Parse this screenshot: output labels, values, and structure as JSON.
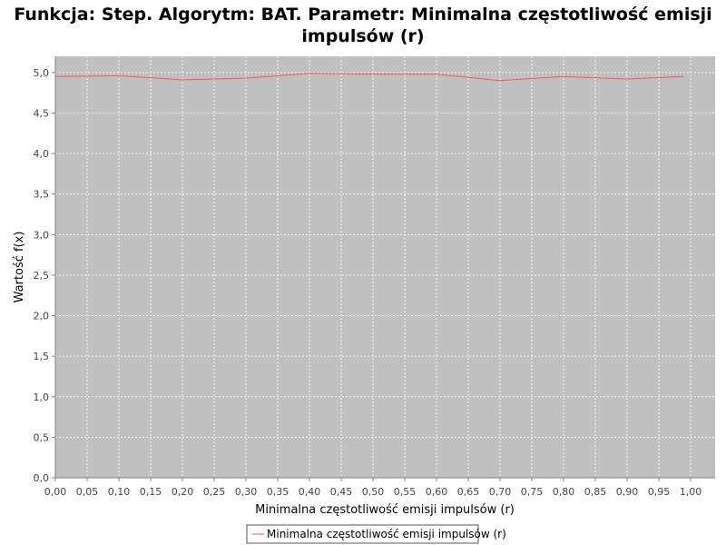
{
  "chart_data": {
    "type": "line",
    "title_line1": "Funkcja: Step. Algorytm: BAT. Parametr: Minimalna częstotliwość emisji",
    "title_line2": "impulsów (r)",
    "xlabel": "Minimalna częstotliwość emisji impulsów (r)",
    "ylabel": "Wartość f(x)",
    "xlim": [
      0.0,
      1.0
    ],
    "ylim": [
      0.0,
      5.2
    ],
    "x_ticks": [
      0.0,
      0.05,
      0.1,
      0.15,
      0.2,
      0.25,
      0.3,
      0.35,
      0.4,
      0.45,
      0.5,
      0.55,
      0.6,
      0.65,
      0.7,
      0.75,
      0.8,
      0.85,
      0.9,
      0.95,
      1.0
    ],
    "x_tick_labels": [
      "0,00",
      "0,05",
      "0,10",
      "0,15",
      "0,20",
      "0,25",
      "0,30",
      "0,35",
      "0,40",
      "0,45",
      "0,50",
      "0,55",
      "0,60",
      "0,65",
      "0,70",
      "0,75",
      "0,80",
      "0,85",
      "0,90",
      "0,95",
      "1,00"
    ],
    "y_ticks": [
      0.0,
      0.5,
      1.0,
      1.5,
      2.0,
      2.5,
      3.0,
      3.5,
      4.0,
      4.5,
      5.0
    ],
    "y_tick_labels": [
      "0,0",
      "0,5",
      "1,0",
      "1,5",
      "2,0",
      "2,5",
      "3,0",
      "3,5",
      "4,0",
      "4,5",
      "5,0"
    ],
    "grid": true,
    "legend_position": "bottom-center",
    "series": [
      {
        "name": "Minimalna częstotliwość emisji impulsów (r)",
        "color": "#ff5555",
        "x": [
          0.0,
          0.1,
          0.2,
          0.3,
          0.4,
          0.5,
          0.6,
          0.7,
          0.8,
          0.9,
          0.99
        ],
        "y": [
          4.95,
          4.96,
          4.91,
          4.93,
          4.99,
          4.98,
          4.98,
          4.9,
          4.95,
          4.92,
          4.95
        ]
      }
    ]
  }
}
